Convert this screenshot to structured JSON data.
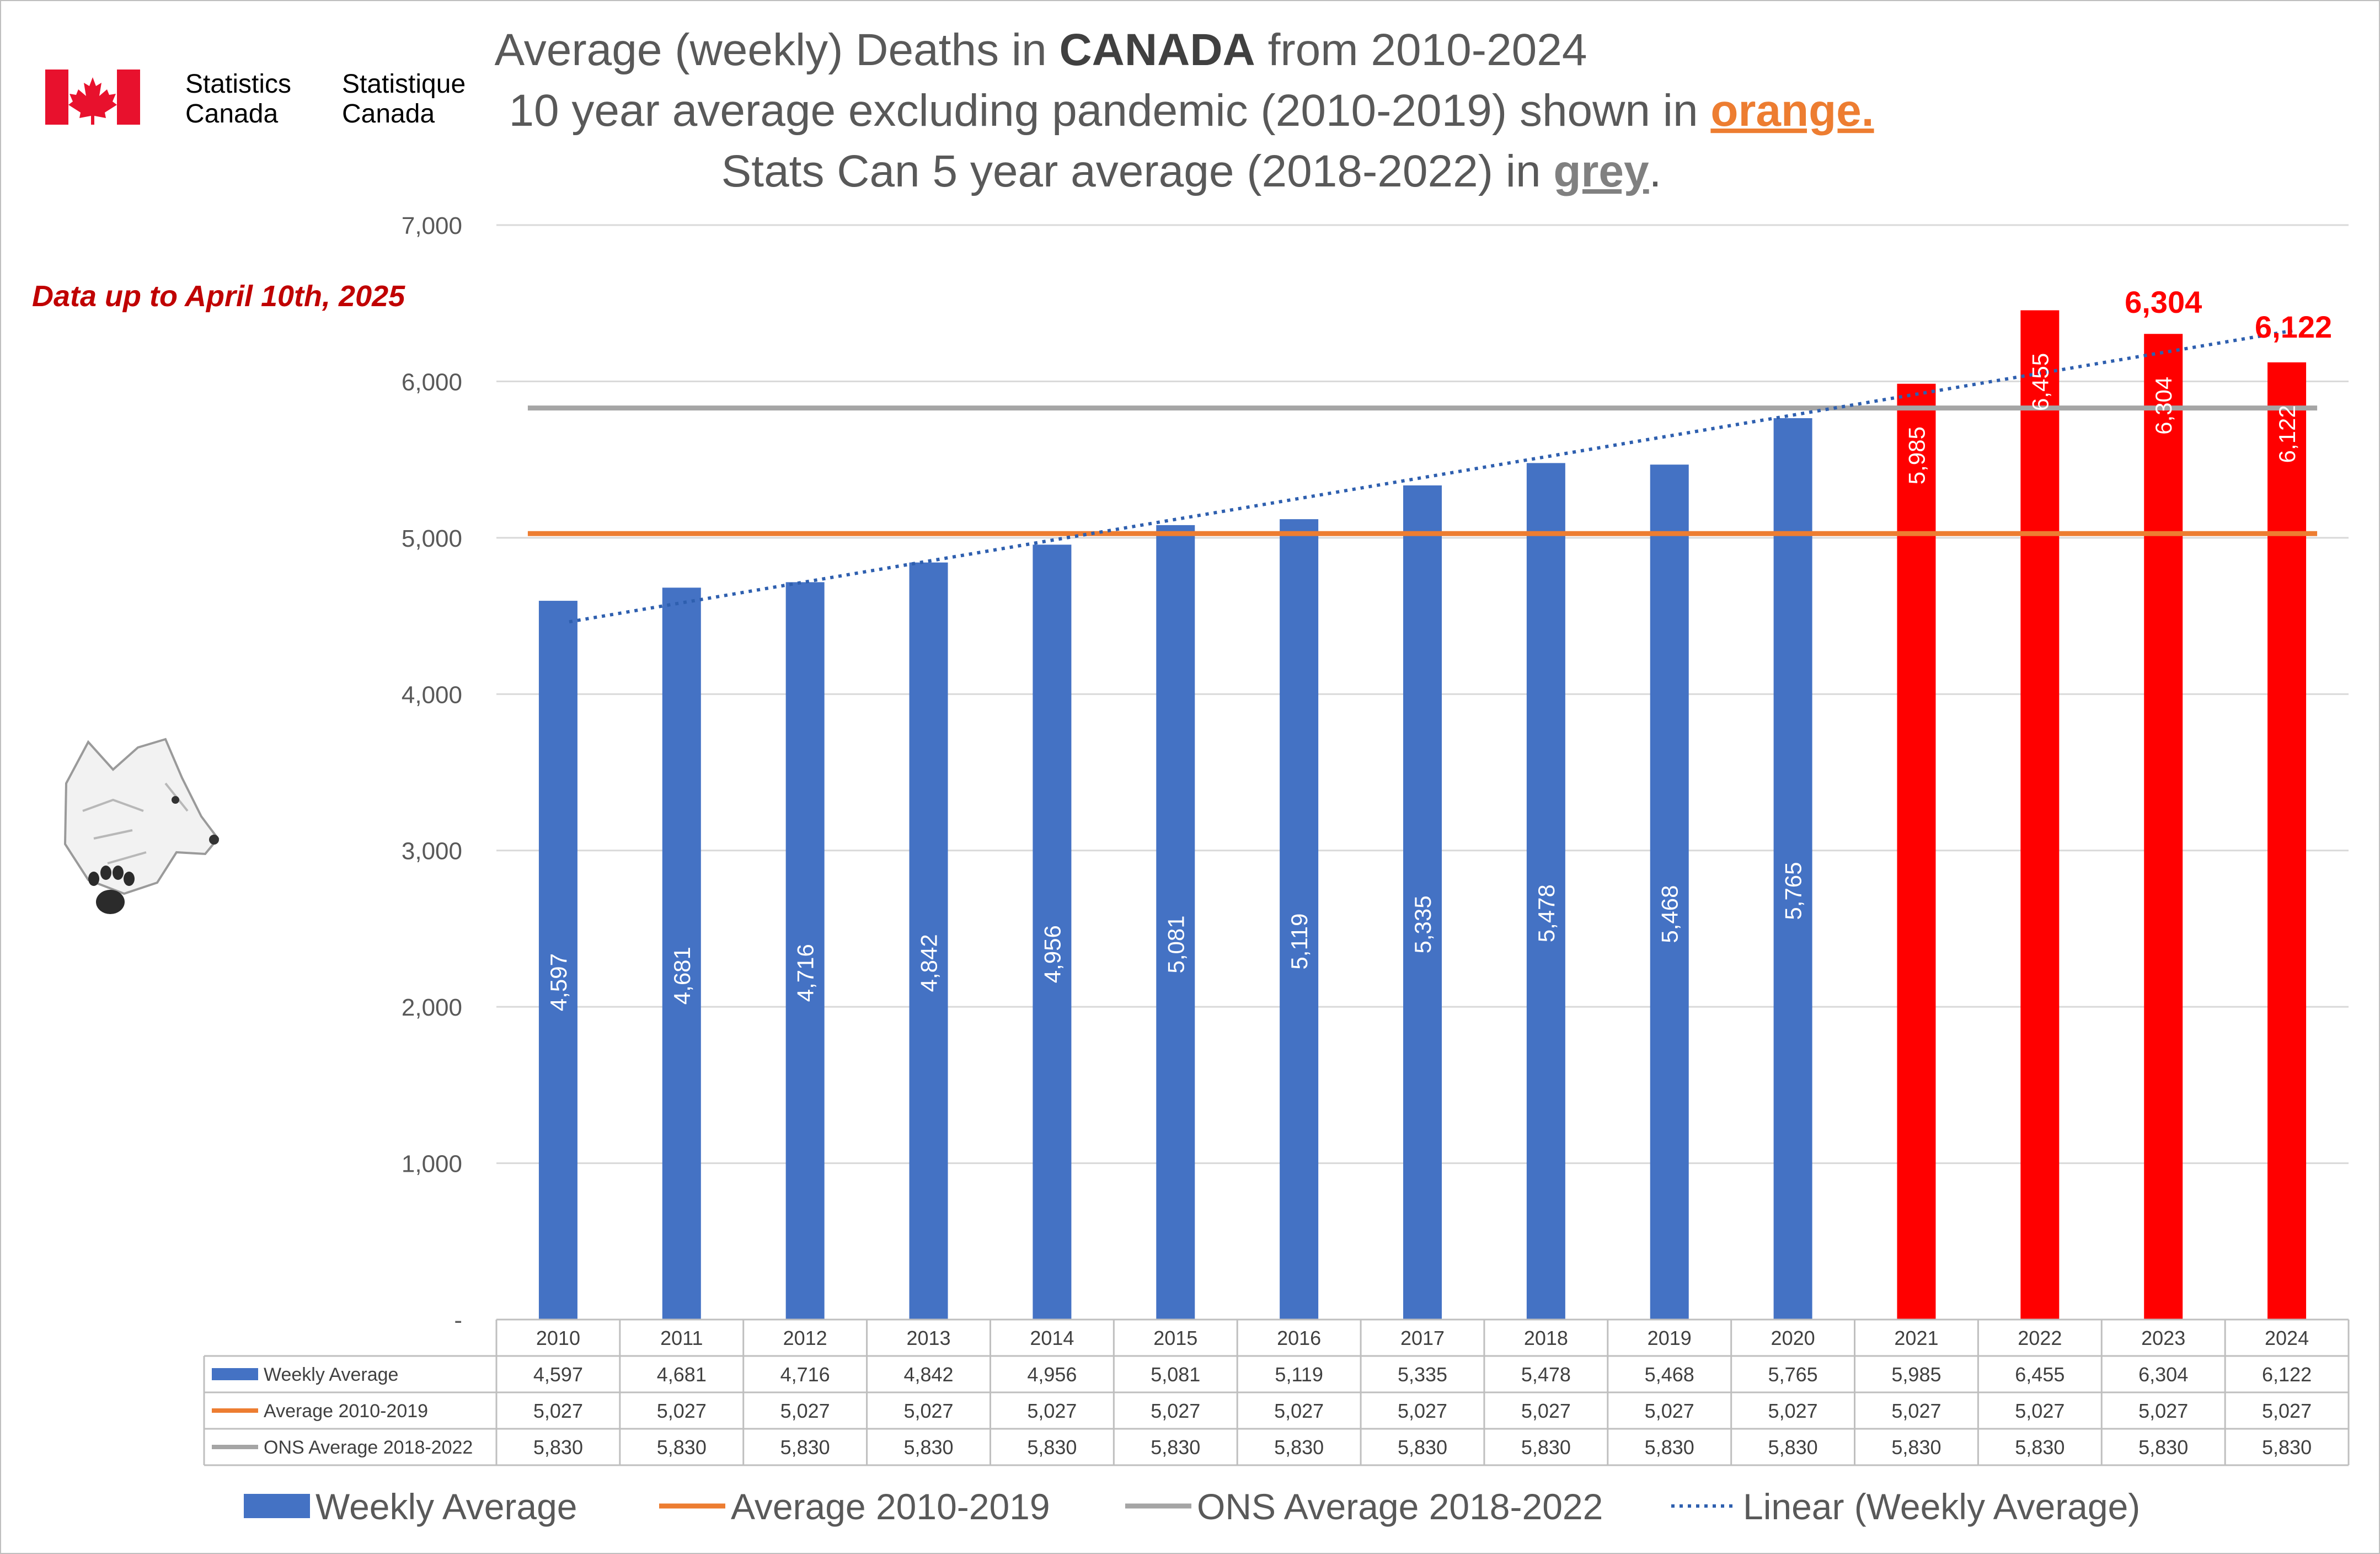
{
  "logo": {
    "stats_en_1": "Statistics",
    "stats_en_2": "Canada",
    "stats_fr_1": "Statistique",
    "stats_fr_2": "Canada"
  },
  "title": {
    "line1_a": "Average (weekly) Deaths in ",
    "line1_b": "CANADA",
    "line1_c": " from 2010-2024",
    "line2_a": "10 year average excluding pandemic (2010-2019) shown in ",
    "line2_b": "orange.",
    "line3_a": "Stats Can 5 year average (2018-2022) in ",
    "line3_b": "grey",
    "line3_c": "."
  },
  "note": "Data up to April 10th, 2025",
  "colors": {
    "blue": "#4472C4",
    "red": "#FF0000",
    "orange": "#ED7D31",
    "grey": "#A5A5A5",
    "trend": "#2E5FAF",
    "title": "#595959",
    "note": "#C00000",
    "grid": "#D9D9D9"
  },
  "chart_data": {
    "type": "bar",
    "title": "Average (weekly) Deaths in CANADA from 2010-2024",
    "categories": [
      "2010",
      "2011",
      "2012",
      "2013",
      "2014",
      "2015",
      "2016",
      "2017",
      "2018",
      "2019",
      "2020",
      "2021",
      "2022",
      "2023",
      "2024"
    ],
    "series": [
      {
        "name": "Weekly Average",
        "kind": "bar",
        "values": [
          4597,
          4681,
          4716,
          4842,
          4956,
          5081,
          5119,
          5335,
          5478,
          5468,
          5765,
          5985,
          6455,
          6304,
          6122
        ],
        "highlight_from_index": 11
      },
      {
        "name": "Average 2010-2019",
        "kind": "line",
        "values": [
          5027,
          5027,
          5027,
          5027,
          5027,
          5027,
          5027,
          5027,
          5027,
          5027,
          5027,
          5027,
          5027,
          5027,
          5027
        ]
      },
      {
        "name": "ONS Average 2018-2022",
        "kind": "line",
        "values": [
          5830,
          5830,
          5830,
          5830,
          5830,
          5830,
          5830,
          5830,
          5830,
          5830,
          5830,
          5830,
          5830,
          5830,
          5830
        ]
      },
      {
        "name": "Linear (Weekly Average)",
        "kind": "trendline"
      }
    ],
    "ylim": [
      0,
      7000
    ],
    "yticks": [
      0,
      1000,
      2000,
      3000,
      4000,
      5000,
      6000,
      7000
    ],
    "ytick_labels": [
      "-",
      "1,000",
      "2,000",
      "3,000",
      "4,000",
      "5,000",
      "6,000",
      "7,000"
    ],
    "bar_labels": [
      "4,597",
      "4,681",
      "4,716",
      "4,842",
      "4,956",
      "5,081",
      "5,119",
      "5,335",
      "5,478",
      "5,468",
      "5,765",
      "5,985",
      "6,455",
      "6,304",
      "6,122"
    ],
    "top_labels": {
      "13": "6,304",
      "14": "6,122"
    },
    "table": {
      "rows": [
        {
          "label": "Weekly Average",
          "values": [
            "4,597",
            "4,681",
            "4,716",
            "4,842",
            "4,956",
            "5,081",
            "5,119",
            "5,335",
            "5,478",
            "5,468",
            "5,765",
            "5,985",
            "6,455",
            "6,304",
            "6,122"
          ]
        },
        {
          "label": "Average 2010-2019",
          "values": [
            "5,027",
            "5,027",
            "5,027",
            "5,027",
            "5,027",
            "5,027",
            "5,027",
            "5,027",
            "5,027",
            "5,027",
            "5,027",
            "5,027",
            "5,027",
            "5,027",
            "5,027"
          ]
        },
        {
          "label": "ONS Average 2018-2022",
          "values": [
            "5,830",
            "5,830",
            "5,830",
            "5,830",
            "5,830",
            "5,830",
            "5,830",
            "5,830",
            "5,830",
            "5,830",
            "5,830",
            "5,830",
            "5,830",
            "5,830",
            "5,830"
          ]
        }
      ]
    },
    "legend": [
      "Weekly Average",
      "Average 2010-2019",
      "ONS Average 2018-2022",
      "Linear (Weekly Average)"
    ]
  }
}
